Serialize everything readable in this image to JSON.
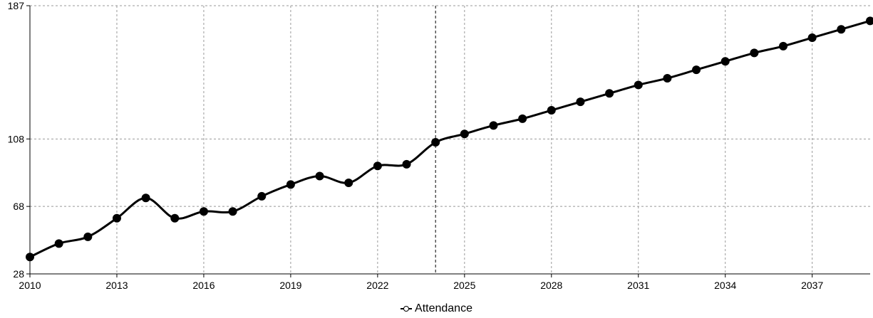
{
  "chart_data": {
    "type": "line",
    "x": [
      2010,
      2011,
      2012,
      2013,
      2014,
      2015,
      2016,
      2017,
      2018,
      2019,
      2020,
      2021,
      2022,
      2023,
      2024,
      2025,
      2026,
      2027,
      2028,
      2029,
      2030,
      2031,
      2032,
      2033,
      2034,
      2035,
      2036,
      2037,
      2038,
      2039
    ],
    "series": [
      {
        "name": "Attendance",
        "color": "#000000",
        "values": [
          38,
          46,
          50,
          61,
          73,
          61,
          65,
          65,
          74,
          81,
          86,
          82,
          92,
          93,
          106,
          111,
          116,
          120,
          125,
          130,
          135,
          140,
          144,
          149,
          154,
          159,
          163,
          168,
          173,
          178
        ]
      }
    ],
    "xticks": [
      "2010",
      "2013",
      "2016",
      "2019",
      "2022",
      "2025",
      "2028",
      "2031",
      "2034",
      "2037"
    ],
    "yticks": [
      "28",
      "68",
      "108",
      "187"
    ],
    "xlim": [
      2010,
      2039
    ],
    "ylim": [
      28,
      187
    ],
    "marker_line_x": 2024,
    "grid": true,
    "legend_position": "bottom-center"
  }
}
